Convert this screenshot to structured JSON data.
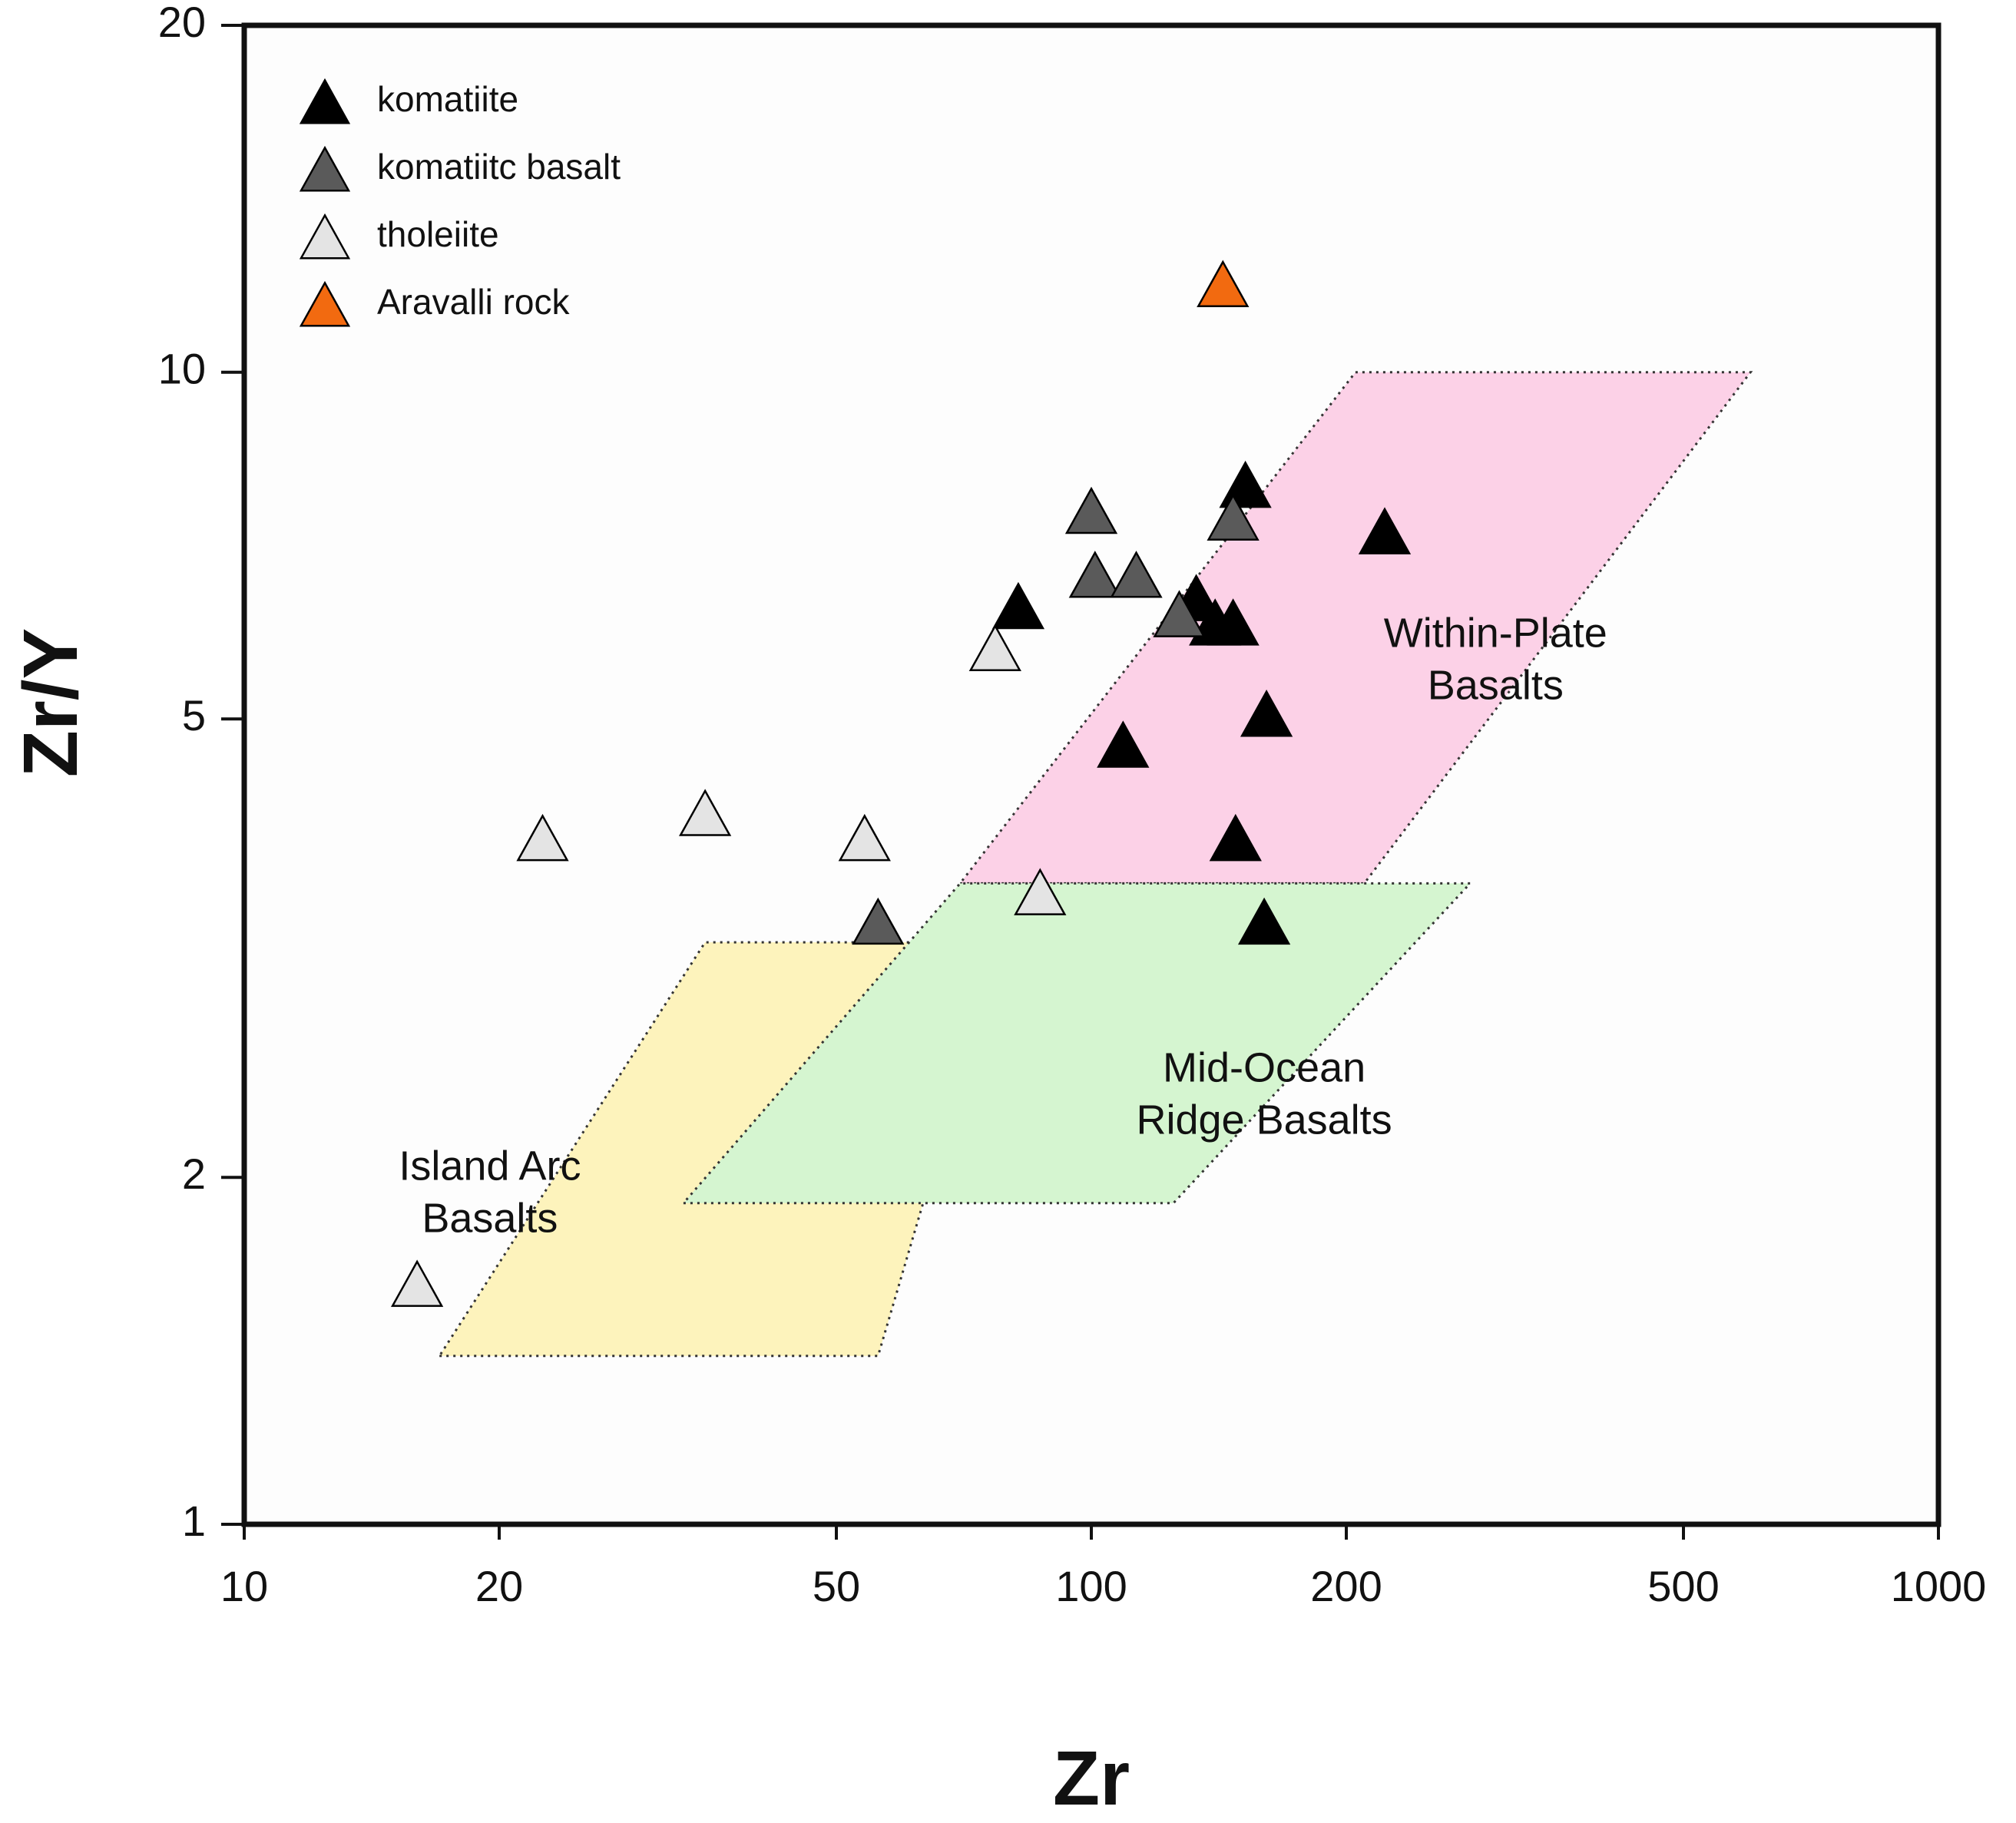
{
  "chart_data": {
    "type": "scatter",
    "title": "",
    "xlabel": "Zr",
    "ylabel": "Zr/Y",
    "xscale": "log",
    "yscale": "log",
    "xlim": [
      10,
      1000
    ],
    "ylim": [
      1,
      20
    ],
    "xticks": [
      10,
      20,
      50,
      100,
      200,
      500,
      1000
    ],
    "xtick_labels": [
      "10",
      "20",
      "50",
      "100",
      "200",
      "500",
      "1000"
    ],
    "yticks": [
      1,
      2,
      5,
      10,
      20
    ],
    "ytick_labels": [
      "1",
      "2",
      "5",
      "10",
      "20"
    ],
    "legend_position": "top-left",
    "series": [
      {
        "name": "komatiite",
        "color": "#000000",
        "points": [
          {
            "x": 82,
            "y": 6.2
          },
          {
            "x": 109,
            "y": 4.7
          },
          {
            "x": 133,
            "y": 6.3
          },
          {
            "x": 140,
            "y": 6.0
          },
          {
            "x": 147,
            "y": 6.0
          },
          {
            "x": 152,
            "y": 7.9
          },
          {
            "x": 148,
            "y": 3.9
          },
          {
            "x": 161,
            "y": 5.0
          },
          {
            "x": 160,
            "y": 3.3
          },
          {
            "x": 222,
            "y": 7.2
          }
        ]
      },
      {
        "name": "komatiitc basalt",
        "color": "#5a5a5a",
        "points": [
          {
            "x": 56,
            "y": 3.3
          },
          {
            "x": 100,
            "y": 7.5
          },
          {
            "x": 101,
            "y": 6.6
          },
          {
            "x": 113,
            "y": 6.6
          },
          {
            "x": 127,
            "y": 6.1
          },
          {
            "x": 147,
            "y": 7.4
          }
        ]
      },
      {
        "name": "tholeiite",
        "color": "#e4e4e4",
        "points": [
          {
            "x": 16,
            "y": 1.6
          },
          {
            "x": 22.5,
            "y": 3.9
          },
          {
            "x": 35,
            "y": 4.1
          },
          {
            "x": 54,
            "y": 3.9
          },
          {
            "x": 77,
            "y": 5.7
          },
          {
            "x": 87,
            "y": 3.5
          }
        ]
      },
      {
        "name": "Aravalli rock",
        "color": "#f26a10",
        "points": [
          {
            "x": 143,
            "y": 11.8
          }
        ]
      }
    ],
    "regions": [
      {
        "name": "Island Arc Basalts",
        "label_lines": [
          "Island Arc",
          "Basalts"
        ],
        "color": "#fdf3bc",
        "label_at": {
          "x": 19.5,
          "y": 1.93
        },
        "vertices": [
          [
            17,
            1.4
          ],
          [
            56,
            1.4
          ],
          [
            78,
            3.2
          ],
          [
            35,
            3.2
          ]
        ]
      },
      {
        "name": "Within-Plate Basalts",
        "label_lines": [
          "Within-Plate",
          "Basalts"
        ],
        "color": "#fcd1e7",
        "label_at": {
          "x": 300,
          "y": 5.6
        },
        "vertices": [
          [
            70,
            3.6
          ],
          [
            210,
            3.6
          ],
          [
            600,
            10
          ],
          [
            205,
            10
          ]
        ]
      },
      {
        "name": "Mid-Ocean Ridge Basalts",
        "label_lines": [
          "Mid-Ocean",
          "Ridge Basalts"
        ],
        "color": "#d5f5d0",
        "label_at": {
          "x": 160,
          "y": 2.35
        },
        "vertices": [
          [
            33,
            1.9
          ],
          [
            125,
            1.9
          ],
          [
            280,
            3.6
          ],
          [
            70,
            3.6
          ]
        ]
      }
    ]
  }
}
